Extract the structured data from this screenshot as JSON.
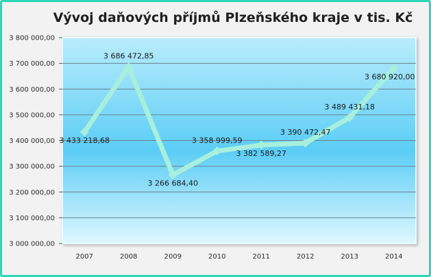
{
  "chart_data": {
    "type": "line",
    "title": "Vývoj daňových příjmů Plzeňského kraje v tis. Kč",
    "categories": [
      "2007",
      "2008",
      "2009",
      "2010",
      "2011",
      "2012",
      "2013",
      "2014"
    ],
    "values": [
      3433218.68,
      3686472.85,
      3266684.4,
      3358999.59,
      3382589.27,
      3390472.47,
      3489431.18,
      3680920.0
    ],
    "data_labels": [
      "3 433 218,68",
      "3 686 472,85",
      "3 266 684,40",
      "3 358 999,59",
      "3 382 589,27",
      "3 390 472,47",
      "3 489 431,18",
      "3 680 920,00"
    ],
    "y_ticks": [
      3000000,
      3100000,
      3200000,
      3300000,
      3400000,
      3500000,
      3600000,
      3700000,
      3800000
    ],
    "y_tick_labels": [
      "3 000 000,00",
      "3 100 000,00",
      "3 200 000,00",
      "3 300 000,00",
      "3 400 000,00",
      "3 500 000,00",
      "3 600 000,00",
      "3 700 000,00",
      "3 800 000,00"
    ],
    "ylim": [
      3000000,
      3800000
    ],
    "xlabel": "",
    "ylabel": "",
    "grid": true,
    "legend": "none",
    "colors": {
      "line": "#a8f0dc",
      "frame_border": "#2ad8b8",
      "plot_top": "#b8ecfb",
      "plot_mid": "#5ccdf6",
      "plot_bottom": "#dff7fe",
      "grid": "#6b7f8a"
    }
  }
}
